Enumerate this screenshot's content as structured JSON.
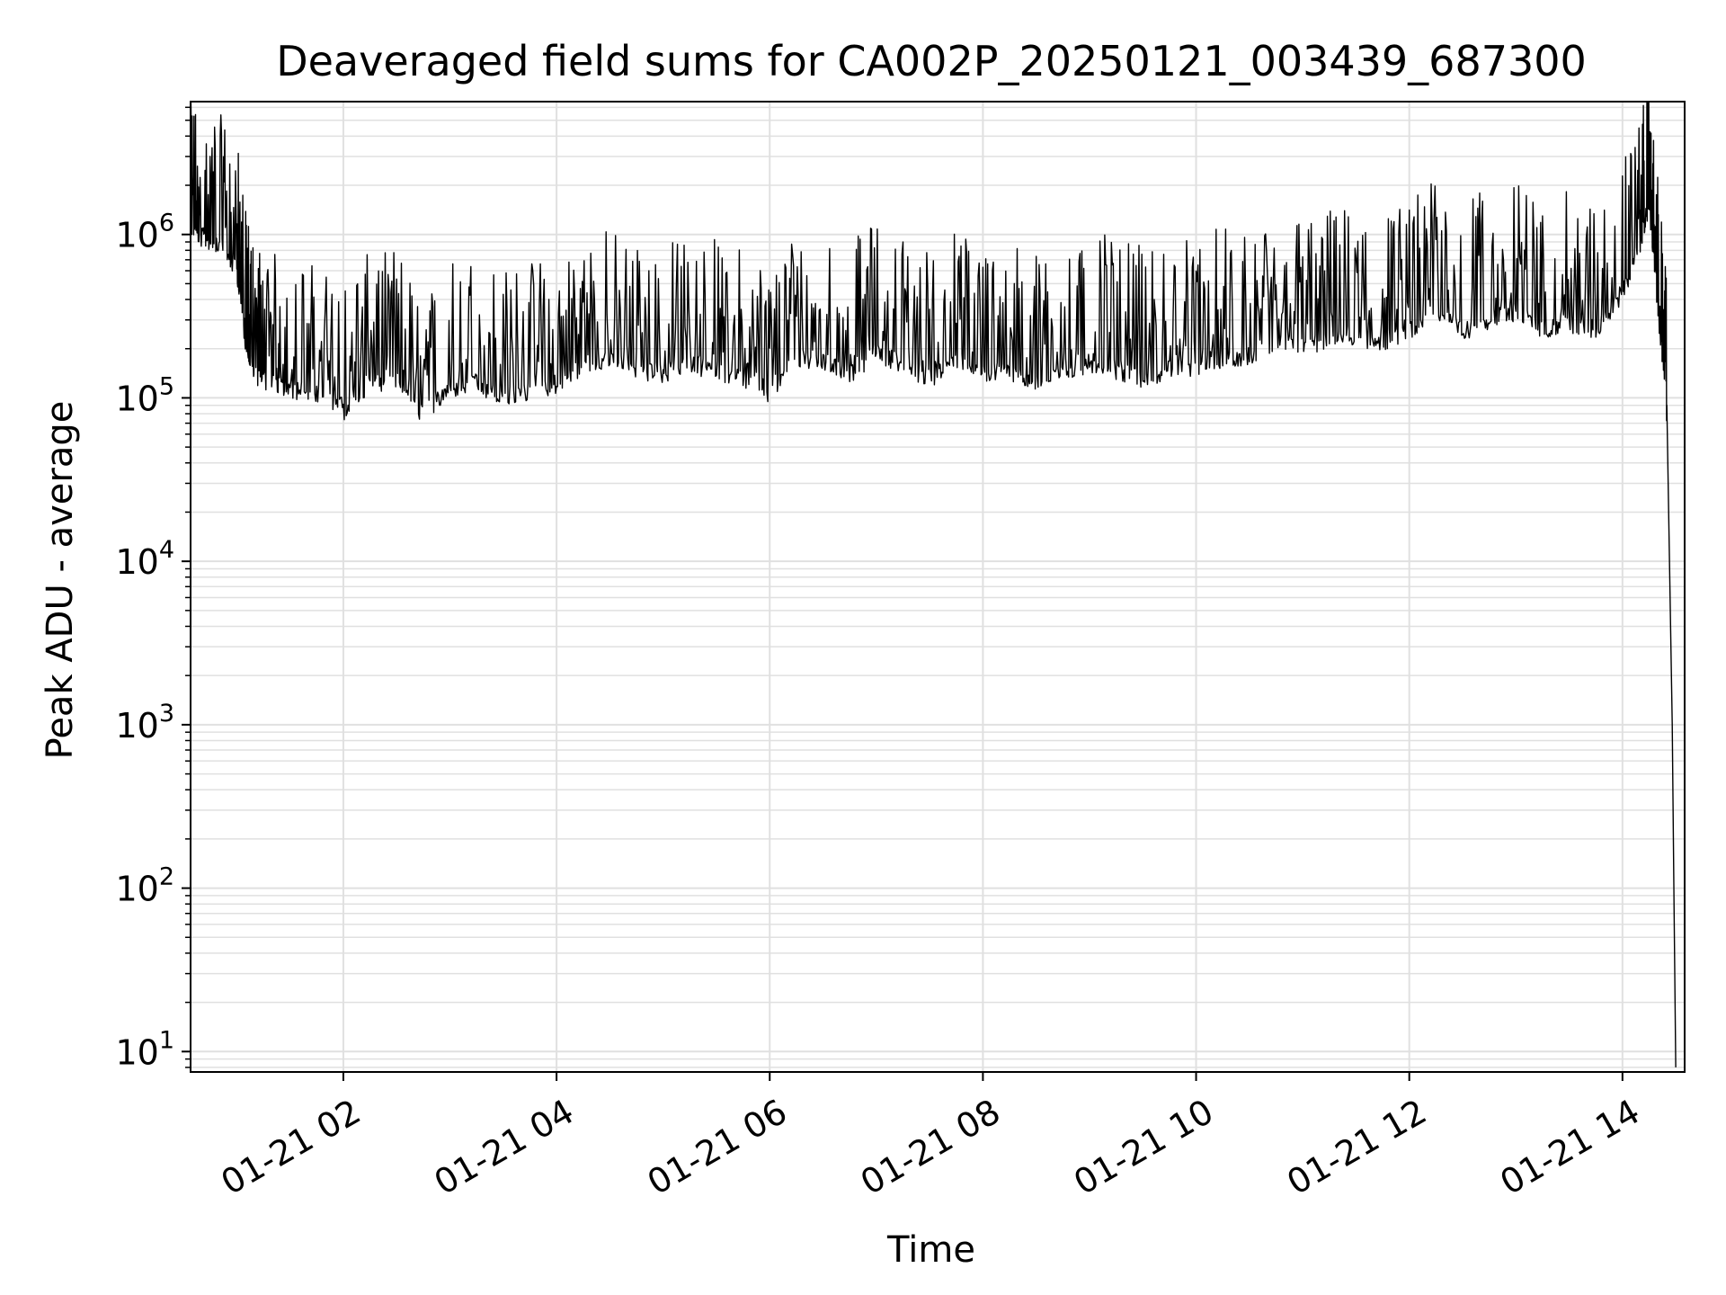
{
  "chart_data": {
    "type": "line",
    "title": "Deaveraged field sums for CA002P_20250121_003439_687300",
    "xlabel": "Time",
    "ylabel": "Peak ADU - average",
    "y_scale": "log",
    "ylim": [
      7.5,
      6500000
    ],
    "xlim": [
      "2025-01-21 00:34",
      "2025-01-21 14:35"
    ],
    "grid": "major and minor",
    "legend": "none",
    "line_color": "#000000",
    "grid_color": "#e0e0e0",
    "x_ticks": [
      {
        "t": "2025-01-21 02:00",
        "label": "01-21 02"
      },
      {
        "t": "2025-01-21 04:00",
        "label": "01-21 04"
      },
      {
        "t": "2025-01-21 06:00",
        "label": "01-21 06"
      },
      {
        "t": "2025-01-21 08:00",
        "label": "01-21 08"
      },
      {
        "t": "2025-01-21 10:00",
        "label": "01-21 10"
      },
      {
        "t": "2025-01-21 12:00",
        "label": "01-21 12"
      },
      {
        "t": "2025-01-21 14:00",
        "label": "01-21 14"
      }
    ],
    "y_ticks": [
      {
        "value": 10,
        "base": "10",
        "exp": "1"
      },
      {
        "value": 100,
        "base": "10",
        "exp": "2"
      },
      {
        "value": 1000,
        "base": "10",
        "exp": "3"
      },
      {
        "value": 10000,
        "base": "10",
        "exp": "4"
      },
      {
        "value": 100000,
        "base": "10",
        "exp": "5"
      },
      {
        "value": 1000000,
        "base": "10",
        "exp": "6"
      }
    ],
    "series": [
      {
        "x": [
          "2025-01-21 00:34",
          "2025-01-21 00:40",
          "2025-01-21 00:50",
          "2025-01-21 01:00",
          "2025-01-21 01:05",
          "2025-01-21 01:10",
          "2025-01-21 01:20",
          "2025-01-21 01:30",
          "2025-01-21 01:45",
          "2025-01-21 02:00",
          "2025-01-21 02:15",
          "2025-01-21 02:30",
          "2025-01-21 02:45",
          "2025-01-21 03:00",
          "2025-01-21 03:15",
          "2025-01-21 03:30",
          "2025-01-21 03:45",
          "2025-01-21 04:00",
          "2025-01-21 04:15",
          "2025-01-21 04:30",
          "2025-01-21 04:45",
          "2025-01-21 05:00",
          "2025-01-21 05:15",
          "2025-01-21 05:30",
          "2025-01-21 05:45",
          "2025-01-21 06:00",
          "2025-01-21 06:15",
          "2025-01-21 06:30",
          "2025-01-21 06:45",
          "2025-01-21 07:00",
          "2025-01-21 07:15",
          "2025-01-21 07:30",
          "2025-01-21 07:45",
          "2025-01-21 08:00",
          "2025-01-21 08:15",
          "2025-01-21 08:30",
          "2025-01-21 08:45",
          "2025-01-21 09:00",
          "2025-01-21 09:15",
          "2025-01-21 09:30",
          "2025-01-21 09:45",
          "2025-01-21 10:00",
          "2025-01-21 10:15",
          "2025-01-21 10:30",
          "2025-01-21 10:45",
          "2025-01-21 11:00",
          "2025-01-21 11:15",
          "2025-01-21 11:30",
          "2025-01-21 11:45",
          "2025-01-21 12:00",
          "2025-01-21 12:15",
          "2025-01-21 12:30",
          "2025-01-21 12:45",
          "2025-01-21 13:00",
          "2025-01-21 13:15",
          "2025-01-21 13:30",
          "2025-01-21 13:45",
          "2025-01-21 14:00",
          "2025-01-21 14:10",
          "2025-01-21 14:15",
          "2025-01-21 14:20",
          "2025-01-21 14:25",
          "2025-01-21 14:28",
          "2025-01-21 14:30"
        ],
        "y": [
          1300000,
          1100000,
          1000000,
          700000,
          250000,
          160000,
          140000,
          130000,
          120000,
          95000,
          140000,
          150000,
          90000,
          130000,
          140000,
          110000,
          125000,
          140000,
          180000,
          200000,
          170000,
          160000,
          180000,
          170000,
          150000,
          120000,
          200000,
          190000,
          160000,
          220000,
          180000,
          150000,
          200000,
          160000,
          170000,
          140000,
          160000,
          190000,
          170000,
          150000,
          170000,
          180000,
          200000,
          210000,
          250000,
          240000,
          260000,
          270000,
          250000,
          300000,
          400000,
          280000,
          350000,
          380000,
          300000,
          330000,
          300000,
          500000,
          1000000,
          1800000,
          400000,
          90000,
          1000,
          8
        ]
      }
    ]
  }
}
